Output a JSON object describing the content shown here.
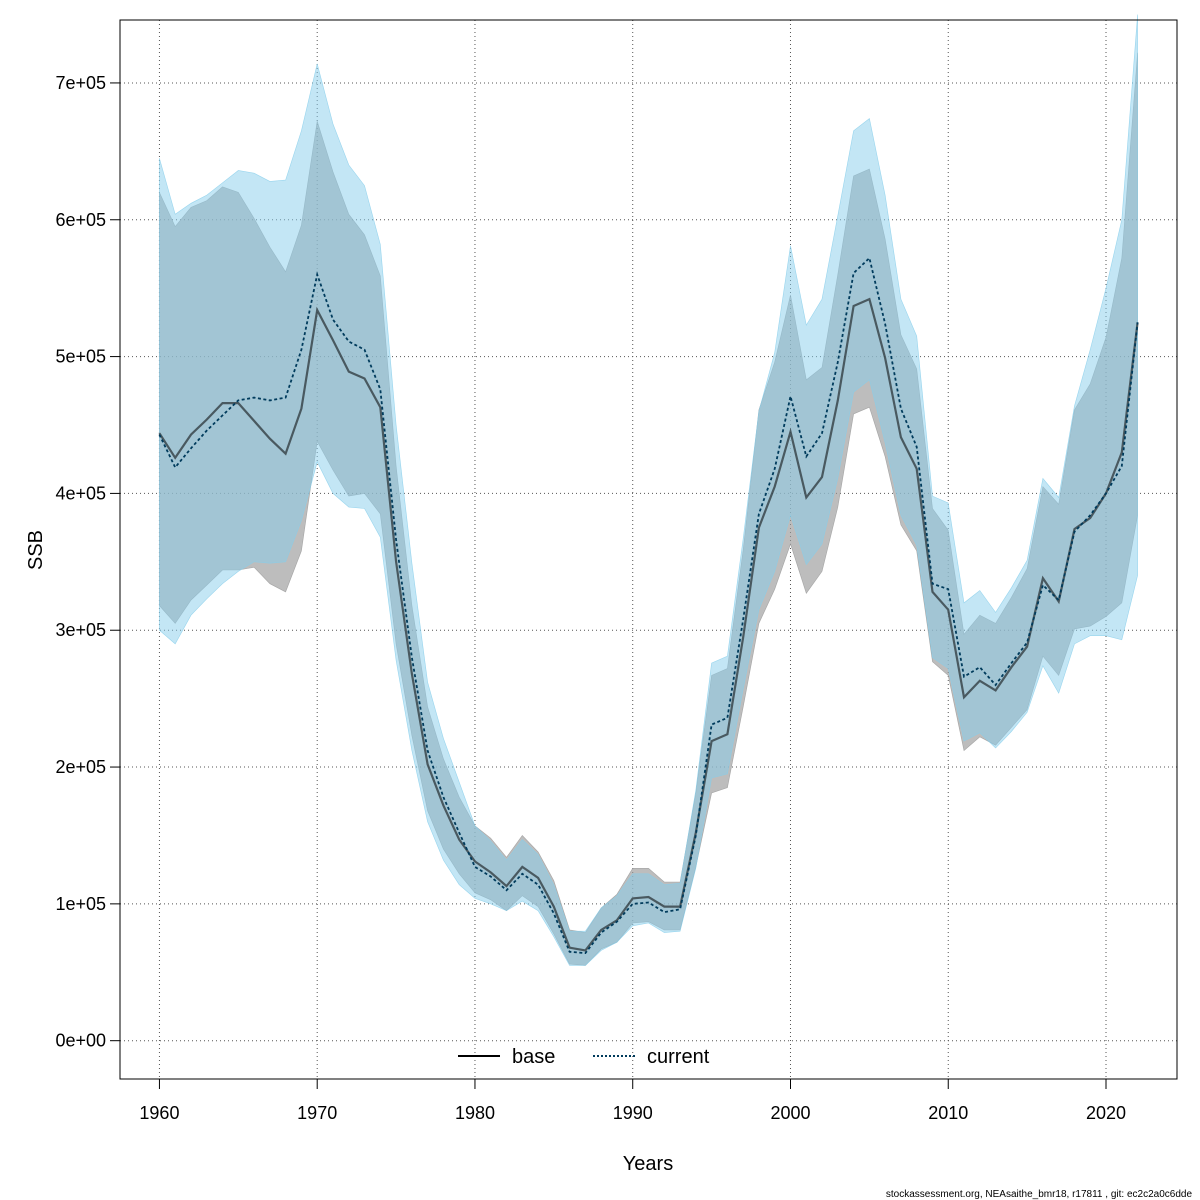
{
  "chart_data": {
    "type": "line",
    "xlabel": "Years",
    "ylabel": "SSB",
    "xlim": [
      1957.5,
      2024.5
    ],
    "ylim": [
      -28000,
      746000
    ],
    "x_ticks": [
      {
        "value": 1960,
        "label": "1960"
      },
      {
        "value": 1970,
        "label": "1970"
      },
      {
        "value": 1980,
        "label": "1980"
      },
      {
        "value": 1990,
        "label": "1990"
      },
      {
        "value": 2000,
        "label": "2000"
      },
      {
        "value": 2010,
        "label": "2010"
      },
      {
        "value": 2020,
        "label": "2020"
      }
    ],
    "y_ticks": [
      {
        "value": 0,
        "label": "0e+00"
      },
      {
        "value": 100000,
        "label": "1e+05"
      },
      {
        "value": 200000,
        "label": "2e+05"
      },
      {
        "value": 300000,
        "label": "3e+05"
      },
      {
        "value": 400000,
        "label": "4e+05"
      },
      {
        "value": 500000,
        "label": "5e+05"
      },
      {
        "value": 600000,
        "label": "6e+05"
      },
      {
        "value": 700000,
        "label": "7e+05"
      }
    ],
    "grid": true,
    "legend_position": "bottom-center",
    "years": [
      1960,
      1961,
      1962,
      1963,
      1964,
      1965,
      1966,
      1967,
      1968,
      1969,
      1970,
      1971,
      1972,
      1973,
      1974,
      1975,
      1976,
      1977,
      1978,
      1979,
      1980,
      1981,
      1982,
      1983,
      1984,
      1985,
      1986,
      1987,
      1988,
      1989,
      1990,
      1991,
      1992,
      1993,
      1994,
      1995,
      1996,
      1997,
      1998,
      1999,
      2000,
      2001,
      2002,
      2003,
      2004,
      2005,
      2006,
      2007,
      2008,
      2009,
      2010,
      2011,
      2012,
      2013,
      2014,
      2015,
      2016,
      2017,
      2018,
      2019,
      2020,
      2021,
      2022
    ],
    "series": [
      {
        "name": "base",
        "color": "#000000",
        "band_color": "#999999",
        "line_style": "solid",
        "values": [
          444000,
          426000,
          443000,
          454000,
          466000,
          466000,
          453000,
          440000,
          429000,
          462000,
          534000,
          512000,
          489000,
          484000,
          463000,
          350000,
          268000,
          202000,
          172000,
          147000,
          131000,
          123000,
          113000,
          127000,
          119000,
          98000,
          68000,
          66000,
          81000,
          88000,
          104000,
          105000,
          98000,
          98000,
          152000,
          219000,
          224000,
          295000,
          375000,
          405000,
          445000,
          397000,
          412000,
          468000,
          537000,
          542000,
          499000,
          441000,
          418000,
          328000,
          315000,
          251000,
          263000,
          256000,
          273000,
          288000,
          338000,
          321000,
          374000,
          382000,
          400000,
          430000,
          525000
        ],
        "lower": [
          318000,
          305000,
          322000,
          333000,
          344000,
          344000,
          346000,
          334000,
          328000,
          358000,
          438000,
          417000,
          398000,
          400000,
          385000,
          290000,
          223000,
          168000,
          140000,
          122000,
          108000,
          103000,
          95000,
          106000,
          98000,
          78000,
          56000,
          55000,
          67000,
          72000,
          86000,
          87000,
          81000,
          81000,
          127000,
          181000,
          185000,
          244000,
          305000,
          330000,
          363000,
          327000,
          343000,
          390000,
          458000,
          463000,
          427000,
          377000,
          358000,
          277000,
          267000,
          212000,
          222000,
          216000,
          229000,
          242000,
          281000,
          267000,
          301000,
          303000,
          310000,
          320000,
          384000
        ],
        "upper": [
          620000,
          595000,
          609000,
          614000,
          624000,
          620000,
          601000,
          580000,
          562000,
          596000,
          672000,
          635000,
          604000,
          589000,
          559000,
          420000,
          318000,
          244000,
          206000,
          178000,
          157000,
          148000,
          134000,
          150000,
          138000,
          117000,
          81000,
          79000,
          97000,
          107000,
          126000,
          126000,
          116000,
          116000,
          181000,
          267000,
          272000,
          359000,
          461000,
          496000,
          545000,
          483000,
          492000,
          560000,
          632000,
          637000,
          586000,
          516000,
          491000,
          389000,
          373000,
          297000,
          311000,
          305000,
          324000,
          345000,
          405000,
          392000,
          461000,
          480000,
          514000,
          572000,
          722000
        ]
      },
      {
        "name": "current",
        "color": "#003b5c",
        "band_color": "#87ceeb",
        "line_style": "dotted",
        "values": [
          443000,
          419000,
          433000,
          446000,
          457000,
          468000,
          470000,
          468000,
          470000,
          505000,
          560000,
          527000,
          511000,
          505000,
          476000,
          366000,
          280000,
          212000,
          178000,
          152000,
          127000,
          120000,
          110000,
          122000,
          114000,
          93000,
          65000,
          64000,
          79000,
          87000,
          100000,
          101000,
          94000,
          96000,
          150000,
          231000,
          236000,
          308000,
          385000,
          418000,
          471000,
          427000,
          444000,
          496000,
          561000,
          572000,
          524000,
          462000,
          434000,
          334000,
          330000,
          266000,
          273000,
          260000,
          276000,
          291000,
          333000,
          322000,
          372000,
          384000,
          400000,
          420000,
          525000
        ],
        "lower": [
          300000,
          290000,
          311000,
          323000,
          334000,
          343000,
          350000,
          349000,
          350000,
          380000,
          423000,
          400000,
          390000,
          389000,
          368000,
          278000,
          212000,
          160000,
          132000,
          114000,
          104000,
          100000,
          95000,
          102000,
          95000,
          76000,
          55000,
          55000,
          66000,
          72000,
          84000,
          86000,
          79000,
          80000,
          126000,
          192000,
          195000,
          257000,
          315000,
          343000,
          384000,
          348000,
          363000,
          411000,
          474000,
          483000,
          437000,
          384000,
          362000,
          280000,
          272000,
          219000,
          225000,
          214000,
          226000,
          240000,
          274000,
          254000,
          290000,
          296000,
          296000,
          293000,
          340000
        ],
        "upper": [
          645000,
          604000,
          612000,
          618000,
          627000,
          636000,
          634000,
          628000,
          629000,
          665000,
          714000,
          670000,
          640000,
          625000,
          582000,
          450000,
          349000,
          262000,
          221000,
          189000,
          157000,
          146000,
          132000,
          147000,
          136000,
          114000,
          80000,
          80000,
          97000,
          106000,
          122000,
          122000,
          114000,
          115000,
          183000,
          276000,
          281000,
          367000,
          460000,
          503000,
          581000,
          523000,
          542000,
          603000,
          665000,
          674000,
          618000,
          542000,
          515000,
          398000,
          393000,
          320000,
          329000,
          313000,
          331000,
          351000,
          411000,
          397000,
          464000,
          505000,
          550000,
          600000,
          750000
        ]
      }
    ]
  },
  "footnote": "stockassessment.org, NEAsaithe_bmr18, r17811 , git: ec2c2a0c6dde"
}
